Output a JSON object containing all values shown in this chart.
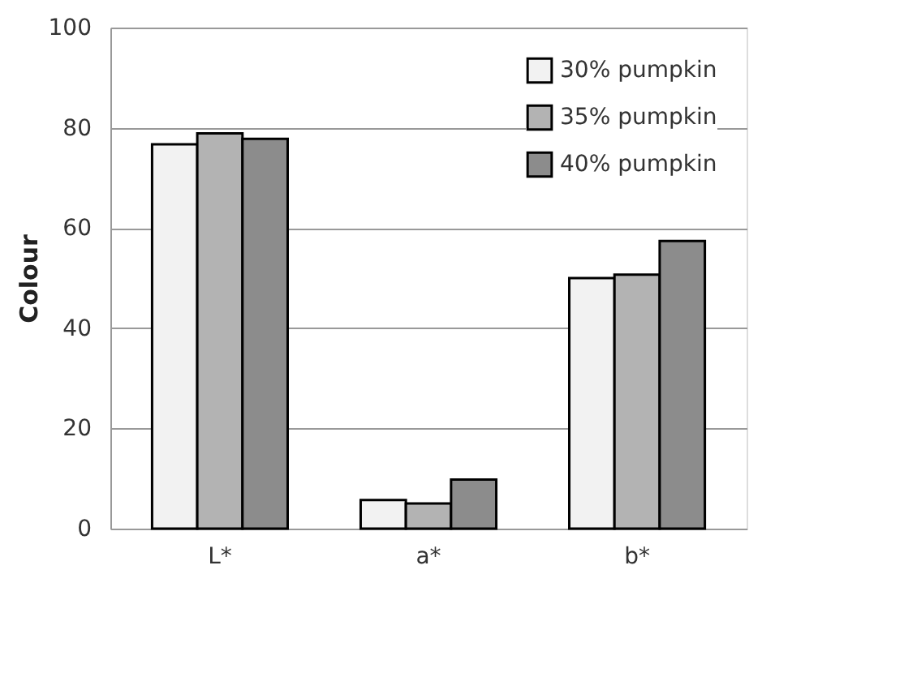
{
  "chart_data": {
    "type": "bar",
    "ylabel": "Colour",
    "categories": [
      "L*",
      "a*",
      "b*"
    ],
    "series": [
      {
        "name": "30% pumpkin",
        "color": "#f2f2f2",
        "values": [
          76.7,
          5.7,
          50.0
        ]
      },
      {
        "name": "35% pumpkin",
        "color": "#b3b3b3",
        "values": [
          78.9,
          5.0,
          50.7
        ]
      },
      {
        "name": "40% pumpkin",
        "color": "#8c8c8c",
        "values": [
          77.8,
          9.8,
          57.4
        ]
      }
    ],
    "ylim": [
      0,
      100
    ],
    "yticks": [
      0,
      20,
      40,
      60,
      80,
      100
    ],
    "grid": "y",
    "legend": "top right"
  }
}
